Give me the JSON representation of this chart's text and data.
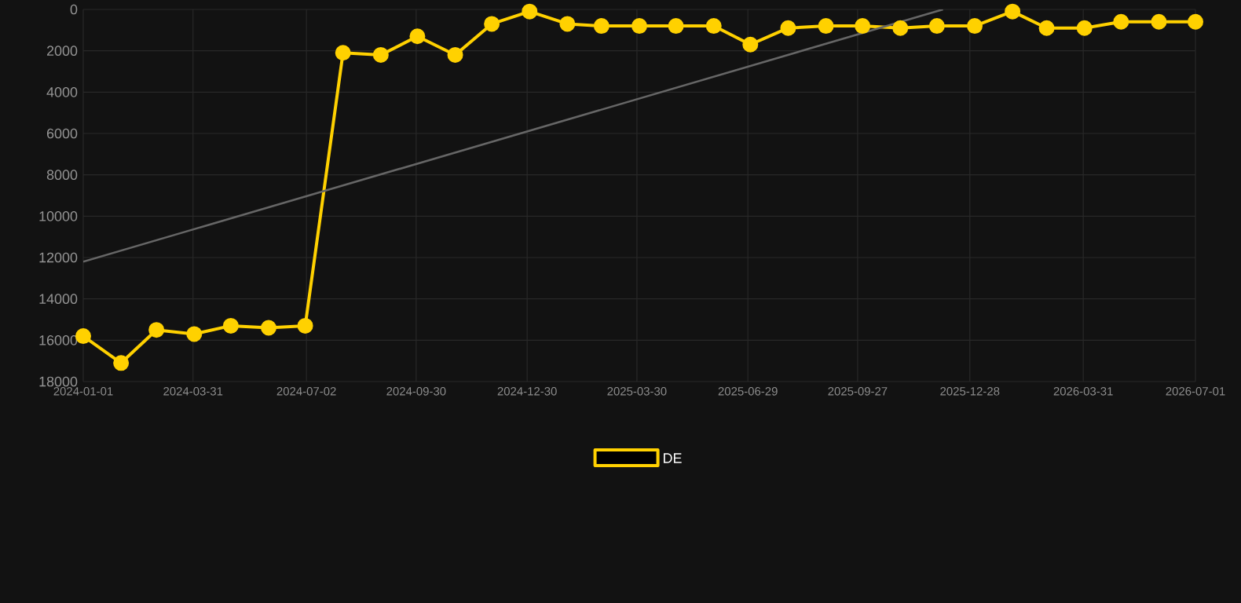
{
  "chart_data": {
    "type": "line",
    "x": [
      "2024-01-01",
      "2024-02-01",
      "2024-03-01",
      "2024-04-01",
      "2024-05-01",
      "2024-06-01",
      "2024-07-01",
      "2024-08-01",
      "2024-09-01",
      "2024-10-01",
      "2024-11-01",
      "2024-12-01",
      "2025-01-01",
      "2025-02-01",
      "2025-03-01",
      "2025-04-01",
      "2025-05-01",
      "2025-06-01",
      "2025-07-01",
      "2025-08-01",
      "2025-09-01",
      "2025-10-01",
      "2025-11-01",
      "2025-12-01",
      "2026-01-01",
      "2026-02-01",
      "2026-03-01",
      "2026-04-01",
      "2026-05-01",
      "2026-06-01",
      "2026-07-01"
    ],
    "series": [
      {
        "name": "DE",
        "color": "#ffd100",
        "values": [
          15800,
          17100,
          15500,
          15700,
          15300,
          15400,
          15300,
          2100,
          2200,
          1300,
          2200,
          700,
          100,
          700,
          800,
          800,
          800,
          800,
          1700,
          900,
          800,
          800,
          900,
          800,
          800,
          100,
          900,
          900,
          600,
          600,
          600
        ]
      },
      {
        "type": "line",
        "color": "#666666",
        "marker": "none",
        "x": [
          "2024-01-01",
          "2025-12-06"
        ],
        "values": [
          12200,
          0
        ]
      }
    ],
    "xlim": [
      "2024-01-01",
      "2026-07-01"
    ],
    "xticks": [
      "2024-01-01",
      "2024-03-31",
      "2024-07-02",
      "2024-09-30",
      "2024-12-30",
      "2025-03-30",
      "2025-06-29",
      "2025-09-27",
      "2025-12-28",
      "2026-03-31",
      "2026-07-01"
    ],
    "ylim": [
      18000,
      0
    ],
    "yticks": [
      0,
      2000,
      4000,
      6000,
      8000,
      10000,
      12000,
      14000,
      16000,
      18000
    ],
    "grid": true,
    "legend": "bottom",
    "marker": "circle",
    "line_style": "solid"
  }
}
